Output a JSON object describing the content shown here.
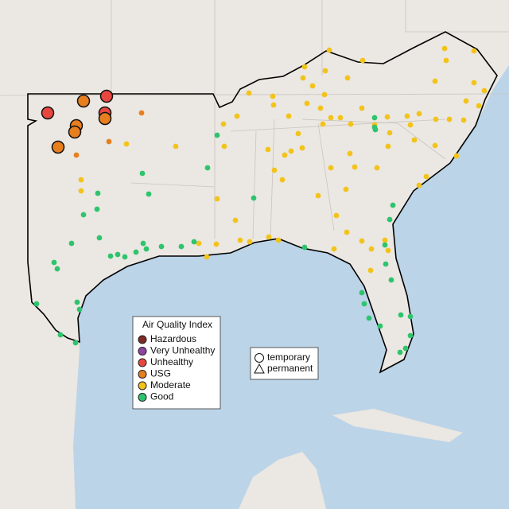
{
  "legend": {
    "title": "Air Quality Index",
    "items": [
      {
        "label": "Hazardous",
        "color": "#7e2b24"
      },
      {
        "label": "Very Unhealthy",
        "color": "#8e44a0"
      },
      {
        "label": "Unhealthy",
        "color": "#e8473f"
      },
      {
        "label": "USG",
        "color": "#e77f1f"
      },
      {
        "label": "Moderate",
        "color": "#f2c31b"
      },
      {
        "label": "Good",
        "color": "#2ec46d"
      }
    ]
  },
  "shape_legend": {
    "items": [
      "temporary",
      "permanent"
    ]
  }
}
